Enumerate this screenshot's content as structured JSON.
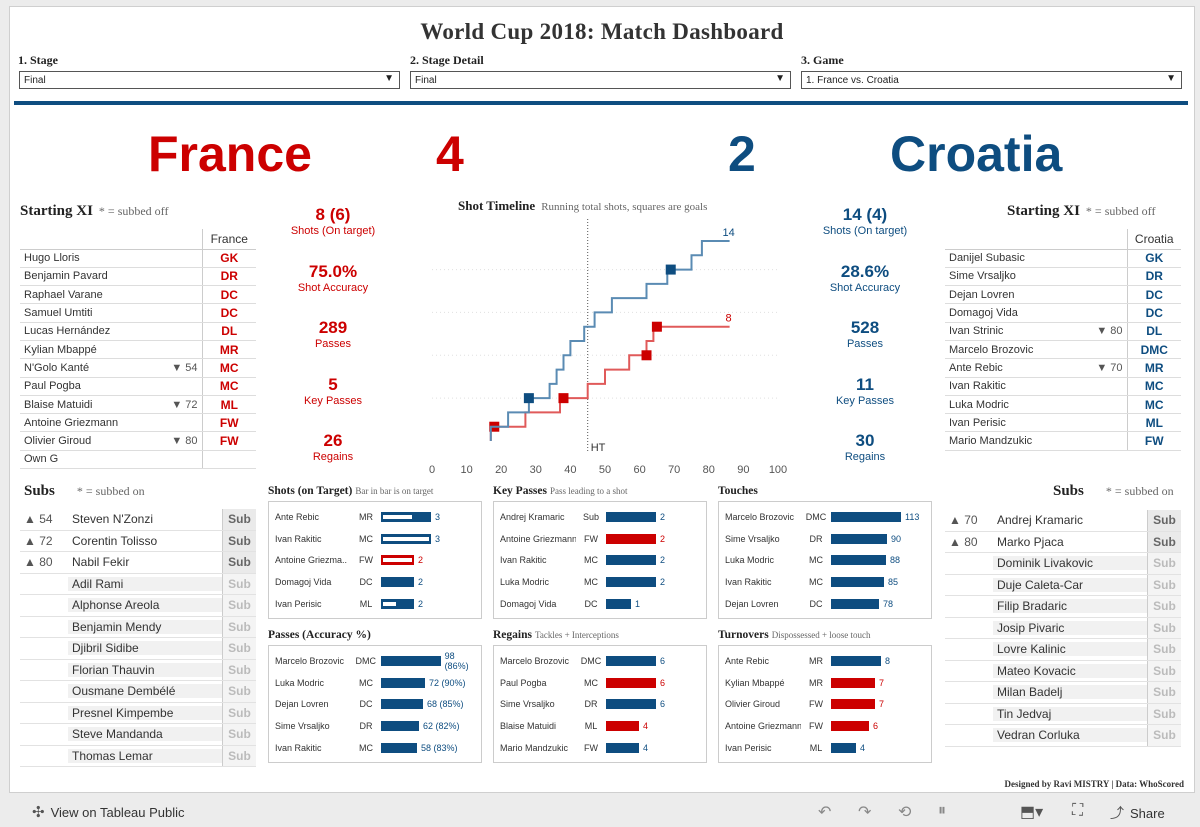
{
  "title": "World  Cup  2018:  Match  Dashboard",
  "filters": [
    {
      "label": "1.  Stage",
      "value": "Final"
    },
    {
      "label": "2.  Stage  Detail",
      "value": "Final"
    },
    {
      "label": "3.  Game",
      "value": "1. France vs. Croatia"
    }
  ],
  "home": {
    "name": "France",
    "score": "4",
    "color": "#cc0000"
  },
  "away": {
    "name": "Croatia",
    "score": "2",
    "color": "#0e4d80"
  },
  "xi_head": "Starting  XI",
  "xi_note": "* = subbed off",
  "home_xi": {
    "col": "France",
    "players": [
      [
        "Hugo Lloris",
        "",
        "GK"
      ],
      [
        "Benjamin Pavard",
        "",
        "DR"
      ],
      [
        "Raphael Varane",
        "",
        "DC"
      ],
      [
        "Samuel Umtiti",
        "",
        "DC"
      ],
      [
        "Lucas Hernández",
        "",
        "DL"
      ],
      [
        "Kylian Mbappé",
        "",
        "MR"
      ],
      [
        "N'Golo Kanté",
        "▼ 54",
        "MC"
      ],
      [
        "Paul Pogba",
        "",
        "MC"
      ],
      [
        "Blaise Matuidi",
        "▼ 72",
        "ML"
      ],
      [
        "Antoine Griezmann",
        "",
        "FW"
      ],
      [
        "Olivier Giroud",
        "▼ 80",
        "FW"
      ],
      [
        "Own G",
        "",
        ""
      ]
    ]
  },
  "away_xi": {
    "col": "Croatia",
    "players": [
      [
        "Danijel Subasic",
        "",
        "GK"
      ],
      [
        "Sime Vrsaljko",
        "",
        "DR"
      ],
      [
        "Dejan Lovren",
        "",
        "DC"
      ],
      [
        "Domagoj Vida",
        "",
        "DC"
      ],
      [
        "Ivan Strinic",
        "▼ 80",
        "DL"
      ],
      [
        "Marcelo Brozovic",
        "",
        "DMC"
      ],
      [
        "Ante Rebic",
        "▼ 70",
        "MR"
      ],
      [
        "Ivan Rakitic",
        "",
        "MC"
      ],
      [
        "Luka Modric",
        "",
        "MC"
      ],
      [
        "Ivan Perisic",
        "",
        "ML"
      ],
      [
        "Mario Mandzukic",
        "",
        "FW"
      ]
    ]
  },
  "home_stats": [
    [
      "8 (6)",
      "Shots (On target)"
    ],
    [
      "75.0%",
      "Shot Accuracy"
    ],
    [
      "289",
      "Passes"
    ],
    [
      "5",
      "Key Passes"
    ],
    [
      "26",
      "Regains"
    ]
  ],
  "away_stats": [
    [
      "14 (4)",
      "Shots (On target)"
    ],
    [
      "28.6%",
      "Shot Accuracy"
    ],
    [
      "528",
      "Passes"
    ],
    [
      "11",
      "Key Passes"
    ],
    [
      "30",
      "Regains"
    ]
  ],
  "timeline": {
    "title": "Shot  Timeline",
    "subtitle": "Running total shots, squares are goals",
    "ht": "HT",
    "ticks": [
      "0",
      "10",
      "20",
      "30",
      "40",
      "50",
      "60",
      "70",
      "80",
      "90",
      "100"
    ],
    "home_end": "8",
    "away_end": "14"
  },
  "subs_head": "Subs",
  "subs_note": "* = subbed on",
  "sub_label": "Sub",
  "home_subs": [
    [
      "▲ 54",
      "Steven N'Zonzi",
      true
    ],
    [
      "▲ 72",
      "Corentin Tolisso",
      true
    ],
    [
      "▲ 80",
      "Nabil Fekir",
      true
    ],
    [
      "",
      "Adil Rami",
      false
    ],
    [
      "",
      "Alphonse Areola",
      false
    ],
    [
      "",
      "Benjamin Mendy",
      false
    ],
    [
      "",
      "Djibril Sidibe",
      false
    ],
    [
      "",
      "Florian Thauvin",
      false
    ],
    [
      "",
      "Ousmane Dembélé",
      false
    ],
    [
      "",
      "Presnel Kimpembe",
      false
    ],
    [
      "",
      "Steve Mandanda",
      false
    ],
    [
      "",
      "Thomas Lemar",
      false
    ]
  ],
  "away_subs": [
    [
      "▲ 70",
      "Andrej Kramaric",
      true
    ],
    [
      "▲ 80",
      "Marko Pjaca",
      true
    ],
    [
      "",
      "Dominik Livakovic",
      false
    ],
    [
      "",
      "Duje Caleta-Car",
      false
    ],
    [
      "",
      "Filip Bradaric",
      false
    ],
    [
      "",
      "Josip Pivaric",
      false
    ],
    [
      "",
      "Lovre Kalinic",
      false
    ],
    [
      "",
      "Mateo Kovacic",
      false
    ],
    [
      "",
      "Milan Badelj",
      false
    ],
    [
      "",
      "Tin Jedvaj",
      false
    ],
    [
      "",
      "Vedran Corluka",
      false
    ]
  ],
  "panels": [
    {
      "title": "Shots  (on  Target)",
      "sub": "Bar in bar is on target",
      "max": 3,
      "rows": [
        [
          "Ante Rebic",
          "MR",
          3,
          "3",
          "b",
          2
        ],
        [
          "Ivan Rakitic",
          "MC",
          3,
          "3",
          "b",
          3
        ],
        [
          "Antoine Griezma..",
          "FW",
          2,
          "2",
          "r",
          2
        ],
        [
          "Domagoj Vida",
          "DC",
          2,
          "2",
          "b",
          0
        ],
        [
          "Ivan Perisic",
          "ML",
          2,
          "2",
          "b",
          1
        ]
      ]
    },
    {
      "title": "Key  Passes",
      "sub": "Pass leading to a shot",
      "max": 2,
      "rows": [
        [
          "Andrej Kramaric",
          "Sub",
          2,
          "2",
          "b",
          0
        ],
        [
          "Antoine Griezmann",
          "FW",
          2,
          "2",
          "r",
          0
        ],
        [
          "Ivan Rakitic",
          "MC",
          2,
          "2",
          "b",
          0
        ],
        [
          "Luka Modric",
          "MC",
          2,
          "2",
          "b",
          0
        ],
        [
          "Domagoj Vida",
          "DC",
          1,
          "1",
          "b",
          0
        ]
      ]
    },
    {
      "title": "Touches",
      "sub": "",
      "max": 113,
      "rows": [
        [
          "Marcelo Brozovic",
          "DMC",
          113,
          "113",
          "b",
          0
        ],
        [
          "Sime Vrsaljko",
          "DR",
          90,
          "90",
          "b",
          0
        ],
        [
          "Luka Modric",
          "MC",
          88,
          "88",
          "b",
          0
        ],
        [
          "Ivan Rakitic",
          "MC",
          85,
          "85",
          "b",
          0
        ],
        [
          "Dejan Lovren",
          "DC",
          78,
          "78",
          "b",
          0
        ]
      ]
    },
    {
      "title": "Passes  (Accuracy  %)",
      "sub": "",
      "max": 98,
      "rows": [
        [
          "Marcelo Brozovic",
          "DMC",
          98,
          "98 (86%)",
          "b",
          0
        ],
        [
          "Luka Modric",
          "MC",
          72,
          "72 (90%)",
          "b",
          0
        ],
        [
          "Dejan Lovren",
          "DC",
          68,
          "68 (85%)",
          "b",
          0
        ],
        [
          "Sime Vrsaljko",
          "DR",
          62,
          "62 (82%)",
          "b",
          0
        ],
        [
          "Ivan Rakitic",
          "MC",
          58,
          "58 (83%)",
          "b",
          0
        ]
      ]
    },
    {
      "title": "Regains",
      "sub": "Tackles + Interceptions",
      "max": 6,
      "rows": [
        [
          "Marcelo Brozovic",
          "DMC",
          6,
          "6",
          "b",
          0
        ],
        [
          "Paul Pogba",
          "MC",
          6,
          "6",
          "r",
          0
        ],
        [
          "Sime Vrsaljko",
          "DR",
          6,
          "6",
          "b",
          0
        ],
        [
          "Blaise Matuidi",
          "ML",
          4,
          "4",
          "r",
          0
        ],
        [
          "Mario Mandzukic",
          "FW",
          4,
          "4",
          "b",
          0
        ]
      ]
    },
    {
      "title": "Turnovers",
      "sub": "Dispossessed + loose touch",
      "max": 8,
      "rows": [
        [
          "Ante Rebic",
          "MR",
          8,
          "8",
          "b",
          0
        ],
        [
          "Kylian Mbappé",
          "MR",
          7,
          "7",
          "r",
          0
        ],
        [
          "Olivier Giroud",
          "FW",
          7,
          "7",
          "r",
          0
        ],
        [
          "Antoine Griezmann",
          "FW",
          6,
          "6",
          "r",
          0
        ],
        [
          "Ivan Perisic",
          "ML",
          4,
          "4",
          "b",
          0
        ]
      ]
    }
  ],
  "footer": "Designed  by  Ravi  MISTRY  |  Data:  WhoScored",
  "toolbar": {
    "view": "View on Tableau Public",
    "share": "Share"
  },
  "chart_data": {
    "type": "line",
    "title": "Shot  Timeline",
    "xlabel": "",
    "ylabel": "",
    "xlim": [
      0,
      100
    ],
    "series": [
      {
        "name": "France",
        "steps": [
          [
            17,
            0
          ],
          [
            17,
            1
          ],
          [
            27,
            1
          ],
          [
            27,
            2
          ],
          [
            37,
            2
          ],
          [
            37,
            3
          ],
          [
            45,
            3
          ],
          [
            45,
            4
          ],
          [
            50,
            4
          ],
          [
            50,
            5
          ],
          [
            57,
            5
          ],
          [
            57,
            6
          ],
          [
            62,
            6
          ],
          [
            62,
            7
          ],
          [
            64,
            7
          ],
          [
            64,
            8
          ],
          [
            86,
            8
          ]
        ],
        "goals": [
          [
            18,
            1
          ],
          [
            38,
            3
          ],
          [
            62,
            6
          ],
          [
            65,
            8
          ]
        ]
      },
      {
        "name": "Croatia",
        "steps": [
          [
            17,
            0
          ],
          [
            17,
            1
          ],
          [
            22,
            1
          ],
          [
            22,
            2
          ],
          [
            28,
            2
          ],
          [
            28,
            3
          ],
          [
            34,
            3
          ],
          [
            34,
            4
          ],
          [
            36,
            4
          ],
          [
            36,
            5
          ],
          [
            38,
            5
          ],
          [
            38,
            6
          ],
          [
            40,
            6
          ],
          [
            40,
            7
          ],
          [
            44,
            7
          ],
          [
            44,
            8
          ],
          [
            47,
            8
          ],
          [
            47,
            9
          ],
          [
            52,
            9
          ],
          [
            52,
            10
          ],
          [
            62,
            10
          ],
          [
            62,
            11
          ],
          [
            68,
            11
          ],
          [
            68,
            12
          ],
          [
            75,
            12
          ],
          [
            75,
            13
          ],
          [
            78,
            13
          ],
          [
            78,
            14
          ],
          [
            86,
            14
          ]
        ],
        "goals": [
          [
            28,
            3
          ],
          [
            69,
            12
          ]
        ]
      }
    ]
  }
}
